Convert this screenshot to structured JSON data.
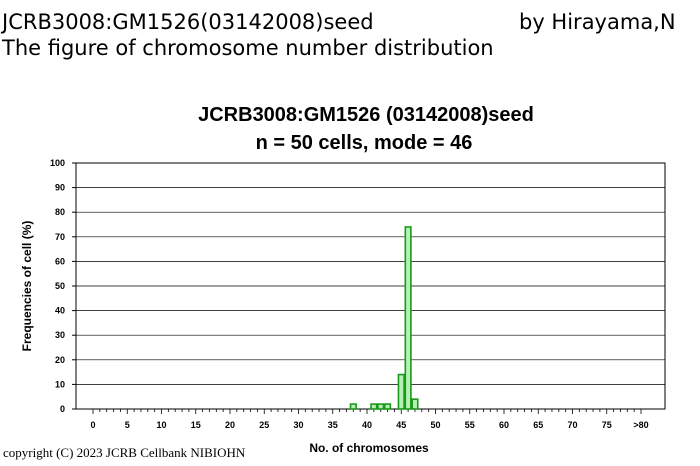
{
  "header": {
    "title": "JCRB3008:GM1526(03142008)seed",
    "author": "by Hirayama,N",
    "subtitle": "The figure of chromosome number distribution"
  },
  "footer": {
    "copyright": "copyright (C) 2023 JCRB Cellbank NIBIOHN"
  },
  "colors": {
    "bar_fill": "#b5f0b5",
    "bar_stroke": "#1a9a1a",
    "grid": "#000000",
    "axis": "#000000"
  },
  "chart_data": {
    "type": "bar",
    "title_line1": "JCRB3008:GM1526 (03142008)seed",
    "title_line2": "n = 50 cells, mode = 46",
    "xlabel": "No. of chromosomes",
    "ylabel": "Frequencies of cell (%)",
    "ylim": [
      0,
      100
    ],
    "yticks": [
      "0",
      "10",
      "20",
      "30",
      "40",
      "50",
      "60",
      "70",
      "80",
      "90",
      "100"
    ],
    "xticks": [
      "0",
      "5",
      "10",
      "15",
      "20",
      "25",
      "30",
      "35",
      "40",
      "45",
      "50",
      "55",
      "60",
      "65",
      "70",
      "75",
      ">80"
    ],
    "grid": true,
    "x": [
      38,
      41,
      42,
      43,
      45,
      46,
      47
    ],
    "values": [
      2,
      2,
      2,
      2,
      14,
      74,
      4
    ]
  }
}
